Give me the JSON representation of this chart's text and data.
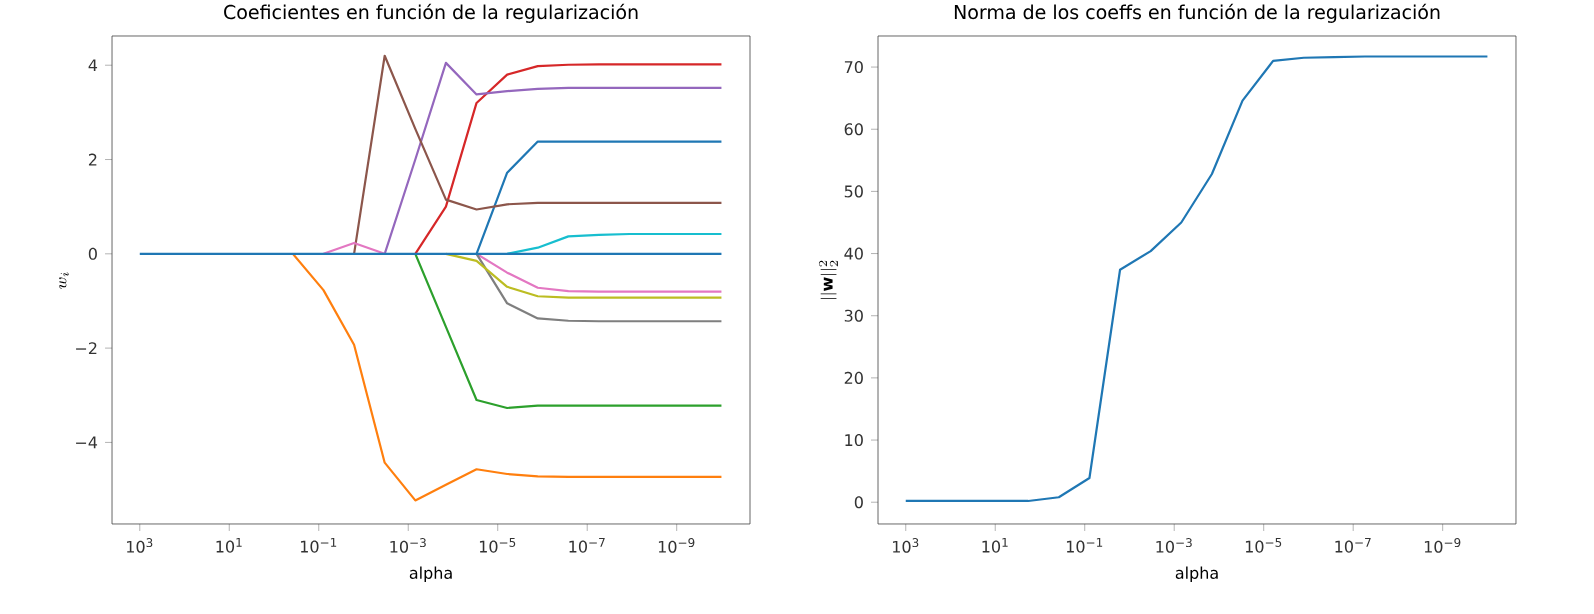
{
  "chart_data": [
    {
      "type": "line",
      "title": "Coeficientes en función de la regularización",
      "xlabel": "alpha",
      "ylabel": "w_i",
      "log": "x",
      "x": [
        1000,
        207.0,
        42.81,
        8.859,
        1.833,
        0.3793,
        0.07848,
        0.01624,
        0.00336,
        0.0006952,
        0.0001438,
        2.976e-05,
        6.158e-06,
        1.274e-06,
        2.637e-07,
        5.456e-08,
        1.129e-08,
        2.336e-09,
        4.833e-10,
        1e-10
      ],
      "xlim": [
        4170,
        2.3e-11
      ],
      "ylim": [
        -5.73,
        4.62
      ],
      "xticks": [
        {
          "value": 1000,
          "label": "10$^{3}$"
        },
        {
          "value": 10,
          "label": "10$^{1}$"
        },
        {
          "value": 0.1,
          "label": "10$^{−1}$"
        },
        {
          "value": 0.001,
          "label": "10$^{−3}$"
        },
        {
          "value": 1e-05,
          "label": "10$^{−5}$"
        },
        {
          "value": 1e-07,
          "label": "10$^{−7}$"
        },
        {
          "value": 1e-09,
          "label": "10$^{−9}$"
        }
      ],
      "yticks": [
        {
          "value": -4,
          "label": "−4"
        },
        {
          "value": -2,
          "label": "−2"
        },
        0,
        2,
        4
      ],
      "series": [
        {
          "color": "#1f77b4",
          "values": [
            null,
            null,
            null,
            null,
            null,
            null,
            null,
            null,
            null,
            null,
            null,
            0,
            1.72,
            2.38,
            2.38,
            2.38,
            2.38,
            2.38,
            2.38,
            2.38
          ]
        },
        {
          "color": "#ff7f0e",
          "values": [
            null,
            null,
            null,
            null,
            null,
            0,
            -0.77,
            -1.93,
            -4.43,
            -5.23,
            -4.9,
            -4.57,
            -4.67,
            -4.72,
            -4.73,
            -4.73,
            -4.73,
            -4.73,
            -4.73,
            -4.73
          ]
        },
        {
          "color": "#2ca02c",
          "values": [
            null,
            null,
            null,
            null,
            null,
            null,
            null,
            null,
            null,
            0,
            -1.55,
            -3.1,
            -3.27,
            -3.22,
            -3.22,
            -3.22,
            -3.22,
            -3.22,
            -3.22,
            -3.22
          ]
        },
        {
          "color": "#d62728",
          "values": [
            null,
            null,
            null,
            null,
            null,
            null,
            null,
            null,
            null,
            0,
            1.0,
            3.2,
            3.8,
            3.98,
            4.01,
            4.02,
            4.02,
            4.02,
            4.02,
            4.02
          ]
        },
        {
          "color": "#9467bd",
          "values": [
            null,
            null,
            null,
            null,
            null,
            null,
            null,
            null,
            0,
            2.0,
            4.05,
            3.38,
            3.45,
            3.5,
            3.52,
            3.52,
            3.52,
            3.52,
            3.52,
            3.52
          ]
        },
        {
          "color": "#8c564b",
          "values": [
            null,
            null,
            null,
            null,
            null,
            null,
            null,
            0,
            4.2,
            2.65,
            1.15,
            0.94,
            1.05,
            1.08,
            1.08,
            1.08,
            1.08,
            1.08,
            1.08,
            1.08
          ]
        },
        {
          "color": "#e377c2",
          "values": [
            null,
            null,
            null,
            null,
            null,
            null,
            0,
            0.23,
            0,
            null,
            null,
            0,
            -0.4,
            -0.72,
            -0.79,
            -0.8,
            -0.8,
            -0.8,
            -0.8,
            -0.8
          ]
        },
        {
          "color": "#7f7f7f",
          "values": [
            null,
            null,
            null,
            null,
            null,
            null,
            null,
            null,
            null,
            null,
            null,
            0,
            -1.05,
            -1.37,
            -1.42,
            -1.43,
            -1.43,
            -1.43,
            -1.43,
            -1.43
          ]
        },
        {
          "color": "#bcbd22",
          "values": [
            null,
            null,
            null,
            null,
            null,
            null,
            null,
            null,
            null,
            null,
            0,
            -0.15,
            -0.7,
            -0.9,
            -0.93,
            -0.93,
            -0.93,
            -0.93,
            -0.93,
            -0.93
          ]
        },
        {
          "color": "#17becf",
          "values": [
            null,
            null,
            null,
            null,
            null,
            null,
            null,
            null,
            null,
            null,
            null,
            null,
            0,
            0.13,
            0.37,
            0.4,
            0.42,
            0.42,
            0.42,
            0.42
          ]
        },
        {
          "color": "#1f77b4",
          "values": [
            0,
            0,
            0,
            0,
            0,
            0,
            0,
            0,
            0,
            0,
            0,
            0,
            0,
            0,
            0,
            0,
            0,
            0,
            0,
            0
          ]
        }
      ]
    },
    {
      "type": "line",
      "title": "Norma de los coeffs en función de la regularización",
      "xlabel": "alpha",
      "ylabel": "||\\mathbf{w}||_2^2",
      "log": "x",
      "x": [
        1000,
        207.0,
        42.81,
        8.859,
        1.833,
        0.3793,
        0.07848,
        0.01624,
        0.00336,
        0.0006952,
        0.0001438,
        2.976e-05,
        6.158e-06,
        1.274e-06,
        2.637e-07,
        5.456e-08,
        1.129e-08,
        2.336e-09,
        4.833e-10,
        1e-10
      ],
      "xlim": [
        4170,
        2.3e-11
      ],
      "ylim": [
        -3.5,
        75.0
      ],
      "xticks": [
        {
          "value": 1000,
          "label": "10$^{3}$"
        },
        {
          "value": 10,
          "label": "10$^{1}$"
        },
        {
          "value": 0.1,
          "label": "10$^{−1}$"
        },
        {
          "value": 0.001,
          "label": "10$^{−3}$"
        },
        {
          "value": 1e-05,
          "label": "10$^{−5}$"
        },
        {
          "value": 1e-07,
          "label": "10$^{−7}$"
        },
        {
          "value": 1e-09,
          "label": "10$^{−9}$"
        }
      ],
      "yticks": [
        0,
        10,
        20,
        30,
        40,
        50,
        60,
        70
      ],
      "series": [
        {
          "color": "#1f77b4",
          "values": [
            0.2,
            0.2,
            0.2,
            0.2,
            0.2,
            0.8,
            3.9,
            37.4,
            40.4,
            45.0,
            52.8,
            64.6,
            71.0,
            71.5,
            71.6,
            71.7,
            71.7,
            71.7,
            71.7,
            71.7
          ]
        }
      ]
    }
  ]
}
